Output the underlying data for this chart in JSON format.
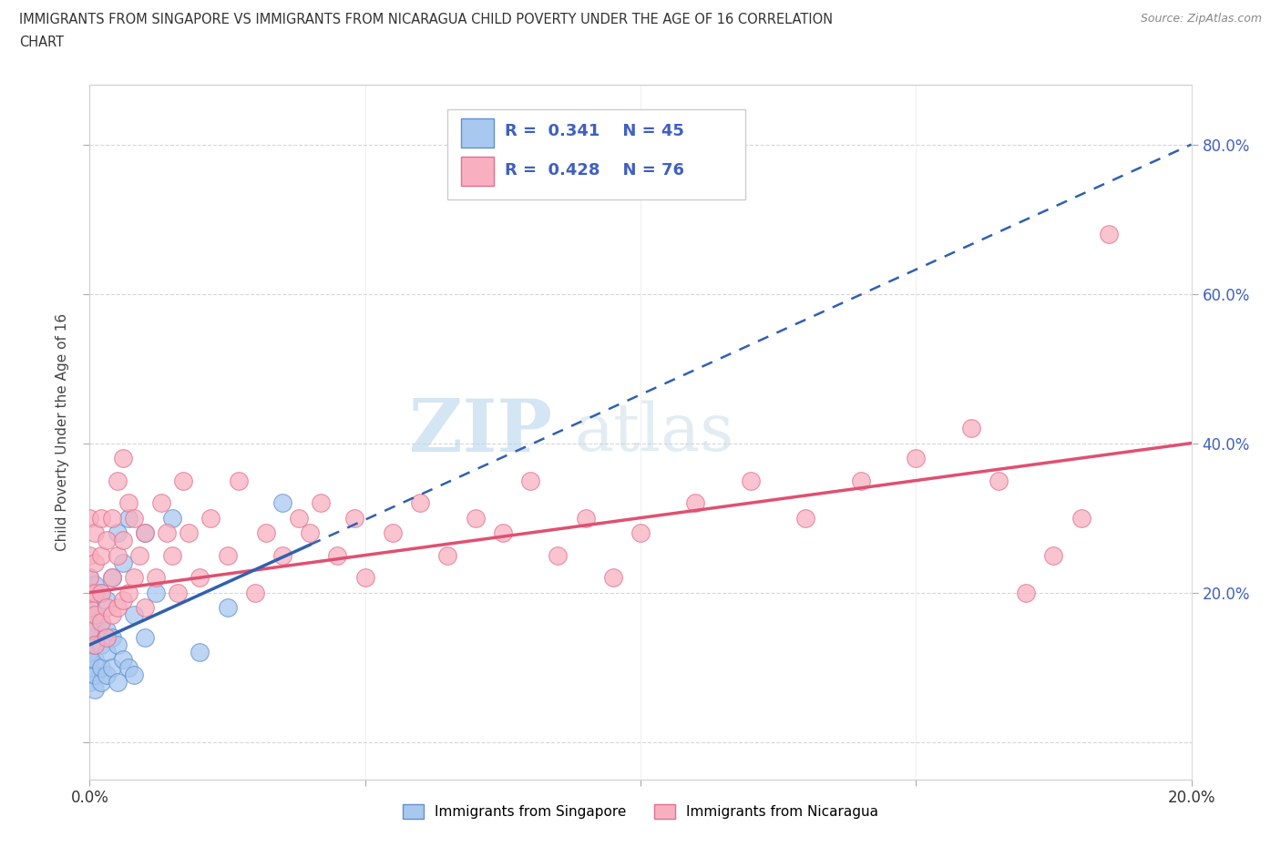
{
  "title_line1": "IMMIGRANTS FROM SINGAPORE VS IMMIGRANTS FROM NICARAGUA CHILD POVERTY UNDER THE AGE OF 16 CORRELATION",
  "title_line2": "CHART",
  "source": "Source: ZipAtlas.com",
  "ylabel": "Child Poverty Under the Age of 16",
  "xlim": [
    0.0,
    0.2
  ],
  "ylim": [
    -0.05,
    0.88
  ],
  "singapore_color": "#a8c8f0",
  "singapore_edge": "#6090d0",
  "nicaragua_color": "#f8b0c0",
  "nicaragua_edge": "#e07090",
  "trend_singapore_color": "#3060b0",
  "trend_nicaragua_color": "#e05070",
  "watermark_zip": "ZIP",
  "watermark_atlas": "atlas",
  "background_color": "#ffffff",
  "grid_color": "#cccccc",
  "ytick_color": "#4060c0",
  "xtick_color": "#333333"
}
